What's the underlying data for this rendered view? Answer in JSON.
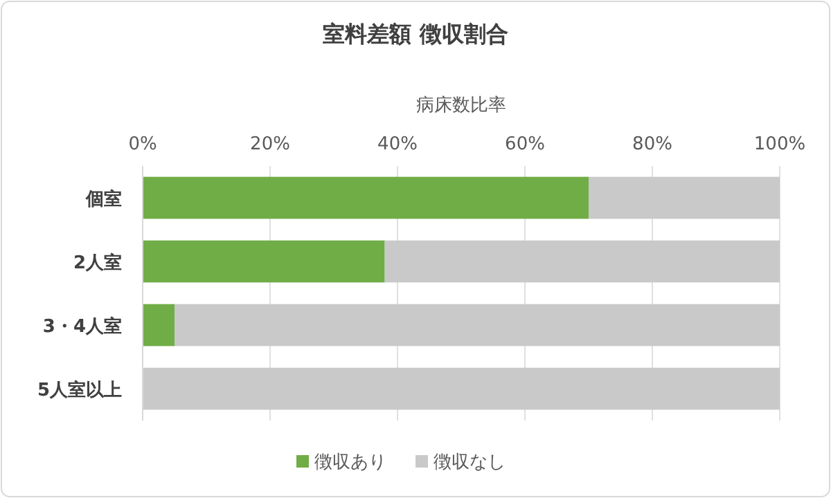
{
  "chart_data": {
    "type": "bar",
    "orientation": "horizontal",
    "stacked": true,
    "title": "室料差額 徴収割合",
    "xlabel": "病床数比率",
    "categories": [
      "個室",
      "2人室",
      "3・4人室",
      "5人室以上"
    ],
    "series": [
      {
        "name": "徴収あり",
        "color": "#70ad47",
        "values": [
          70,
          38,
          5,
          0
        ]
      },
      {
        "name": "徴収なし",
        "color": "#c9c9c9",
        "values": [
          30,
          62,
          95,
          100
        ]
      }
    ],
    "xlim": [
      0,
      100
    ],
    "xticks": [
      {
        "value": 0,
        "label": "0%"
      },
      {
        "value": 20,
        "label": "20%"
      },
      {
        "value": 40,
        "label": "40%"
      },
      {
        "value": 60,
        "label": "60%"
      },
      {
        "value": 80,
        "label": "80%"
      },
      {
        "value": 100,
        "label": "100%"
      }
    ],
    "grid": "x",
    "legend": "bottom"
  }
}
